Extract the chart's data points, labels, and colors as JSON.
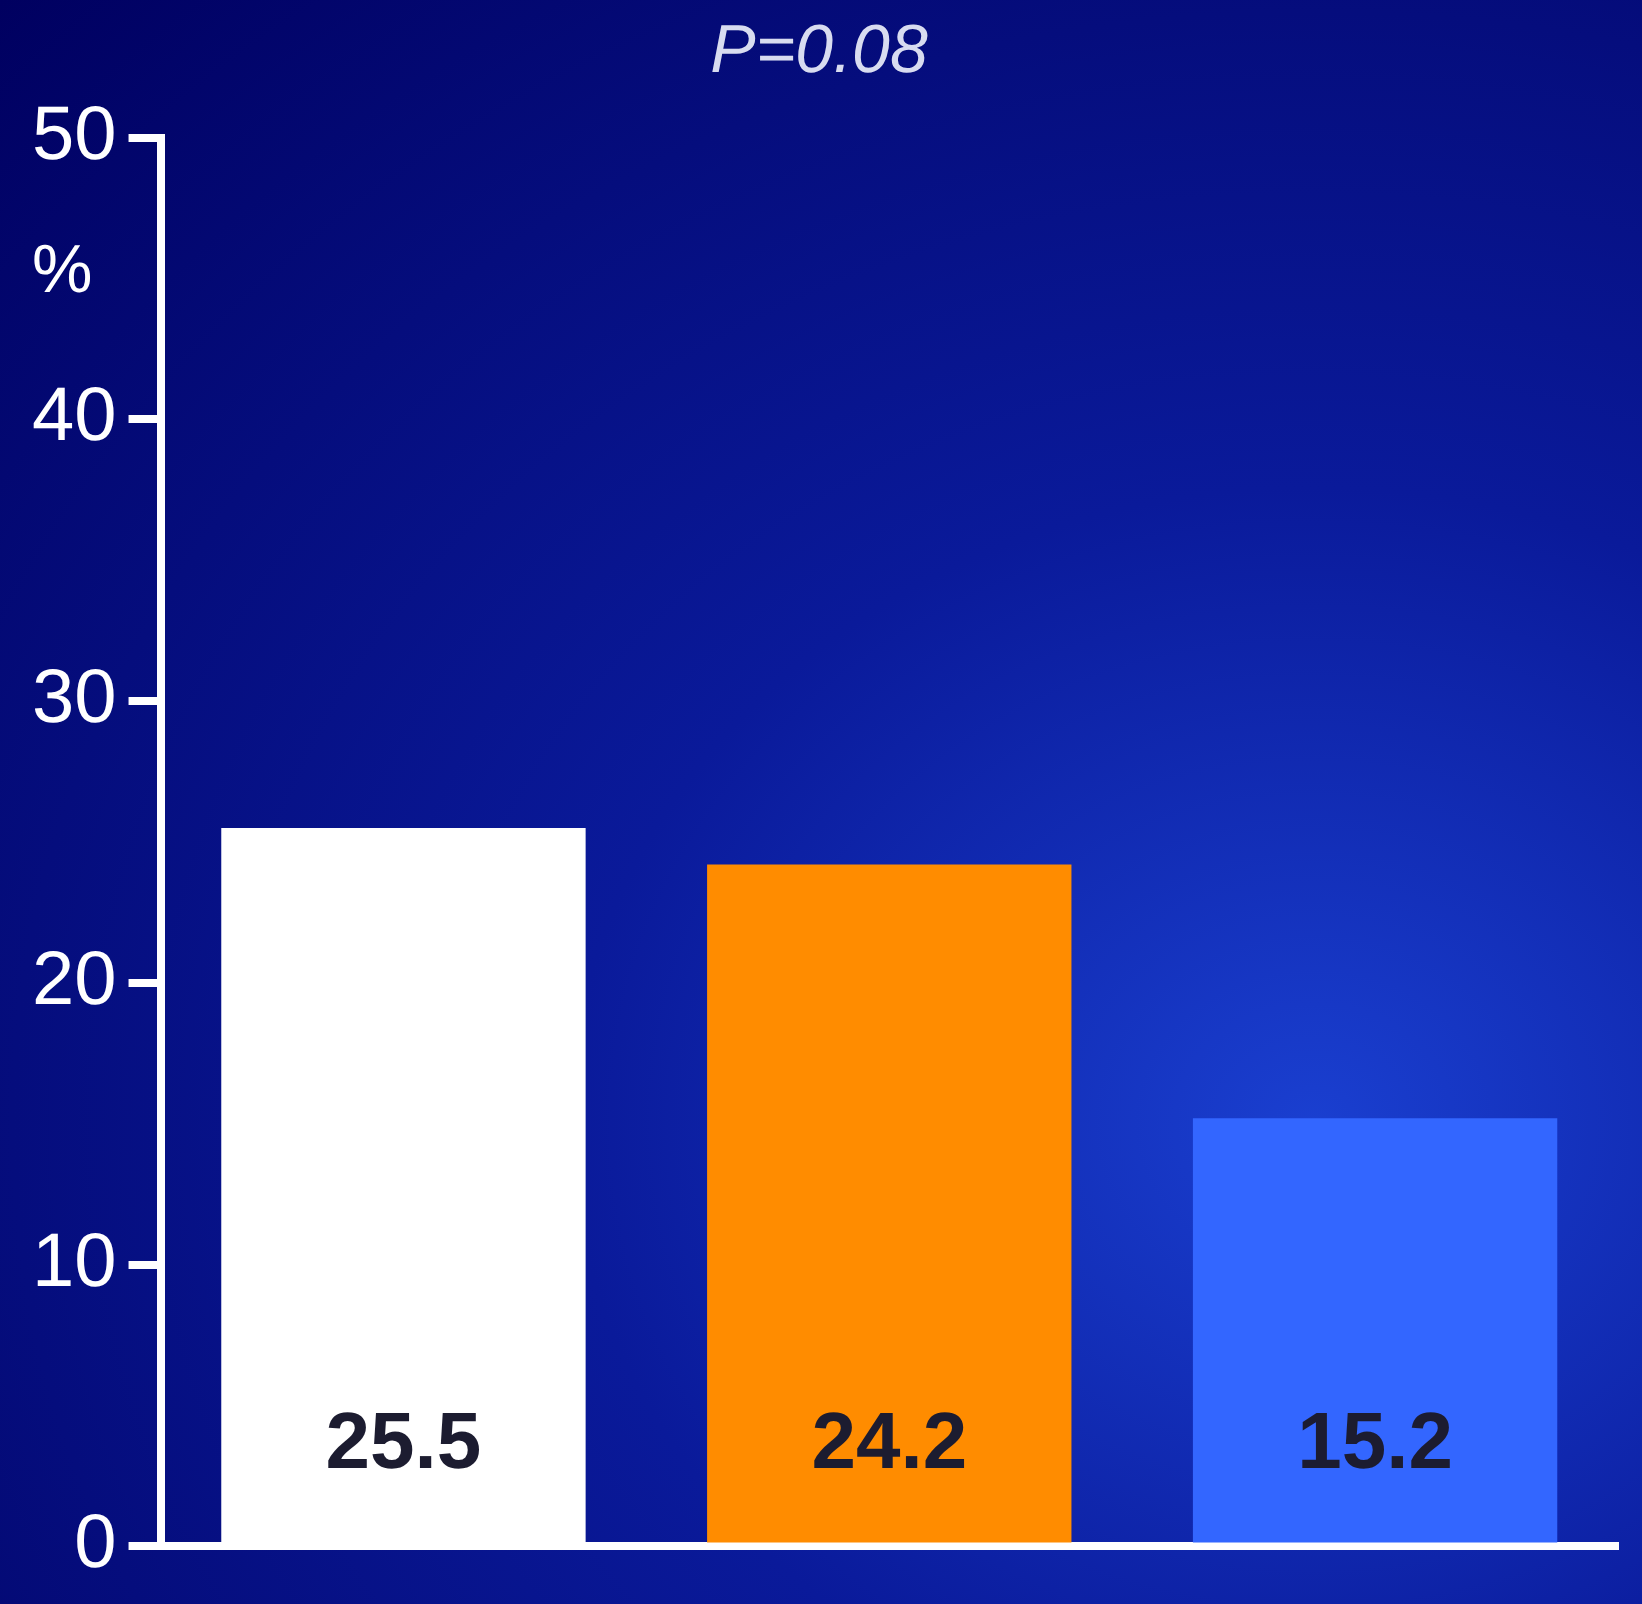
{
  "chart_data": {
    "type": "bar",
    "title": "P=0.08",
    "ylabel": "%",
    "categories": [
      null,
      null,
      null
    ],
    "values": [
      25.5,
      24.2,
      15.2
    ],
    "colors": [
      "#ffffff",
      "#ff8c00",
      "#3366ff"
    ],
    "ylim": [
      0,
      50
    ],
    "yticks": [
      0,
      10,
      20,
      30,
      40,
      50
    ],
    "data_labels": true,
    "grid": false,
    "legend": false
  }
}
